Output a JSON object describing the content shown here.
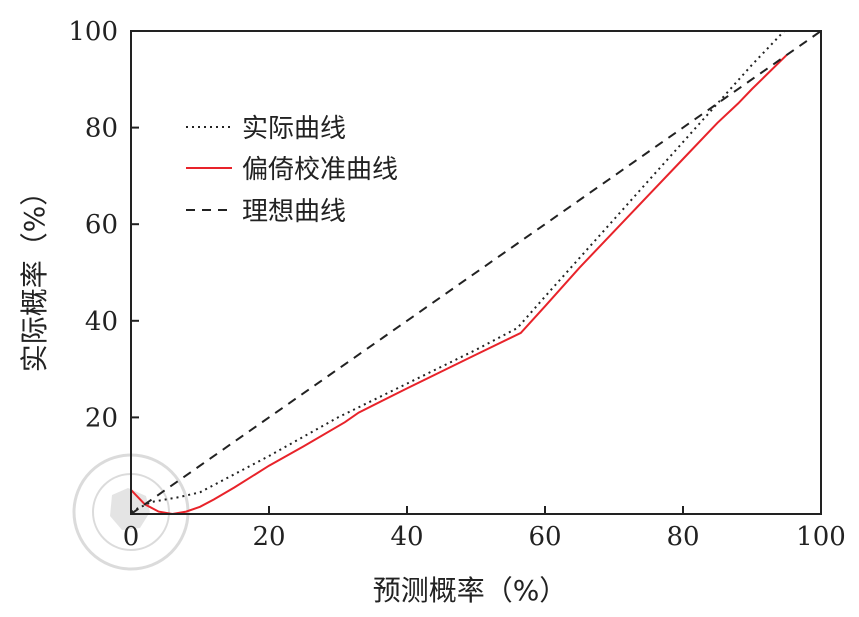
{
  "chart_data": {
    "type": "line",
    "xlabel": "预测概率（%）",
    "ylabel": "实际概率（%）",
    "xlim": [
      0,
      100
    ],
    "ylim": [
      0,
      100
    ],
    "xticks": [
      "0",
      "20",
      "40",
      "60",
      "80",
      "100"
    ],
    "yticks": [
      "20",
      "40",
      "60",
      "80",
      "100"
    ],
    "grid": false,
    "legend_position": "top-left",
    "series": [
      {
        "name": "实际曲线",
        "style": "dotted",
        "color": "#222222",
        "x": [
          0,
          3,
          7,
          10,
          14,
          20,
          25,
          30,
          35,
          40,
          45,
          50,
          56,
          60,
          65,
          70,
          75,
          80,
          85,
          90,
          95
        ],
        "y": [
          0.5,
          2.5,
          3.5,
          4.5,
          7.5,
          12,
          16,
          20,
          23.5,
          27,
          30.5,
          34,
          38.5,
          45,
          53,
          61,
          69,
          77,
          85,
          93,
          100.5
        ]
      },
      {
        "name": "偏倚校准曲线",
        "style": "solid",
        "color": "#e8232a",
        "x": [
          0,
          2,
          4,
          6,
          8,
          10,
          12,
          15,
          20,
          25,
          31,
          33,
          40,
          45,
          50,
          56.5,
          60,
          65,
          70,
          75,
          80,
          85,
          88,
          90,
          95
        ],
        "y": [
          5,
          2,
          0.5,
          0,
          0.5,
          1.5,
          3,
          5.5,
          10,
          14,
          19,
          21,
          26,
          29.5,
          33,
          37.5,
          43,
          51,
          58.5,
          66,
          73.5,
          81,
          85,
          88,
          95
        ]
      },
      {
        "name": "理想曲线",
        "style": "dashed",
        "color": "#222222",
        "x": [
          0,
          100
        ],
        "y": [
          0,
          100
        ]
      }
    ]
  },
  "watermark": {
    "top_text": "中华医学",
    "year": "1915",
    "bottom_text": "CHINESE MEDICAL ASSOCIATION"
  }
}
